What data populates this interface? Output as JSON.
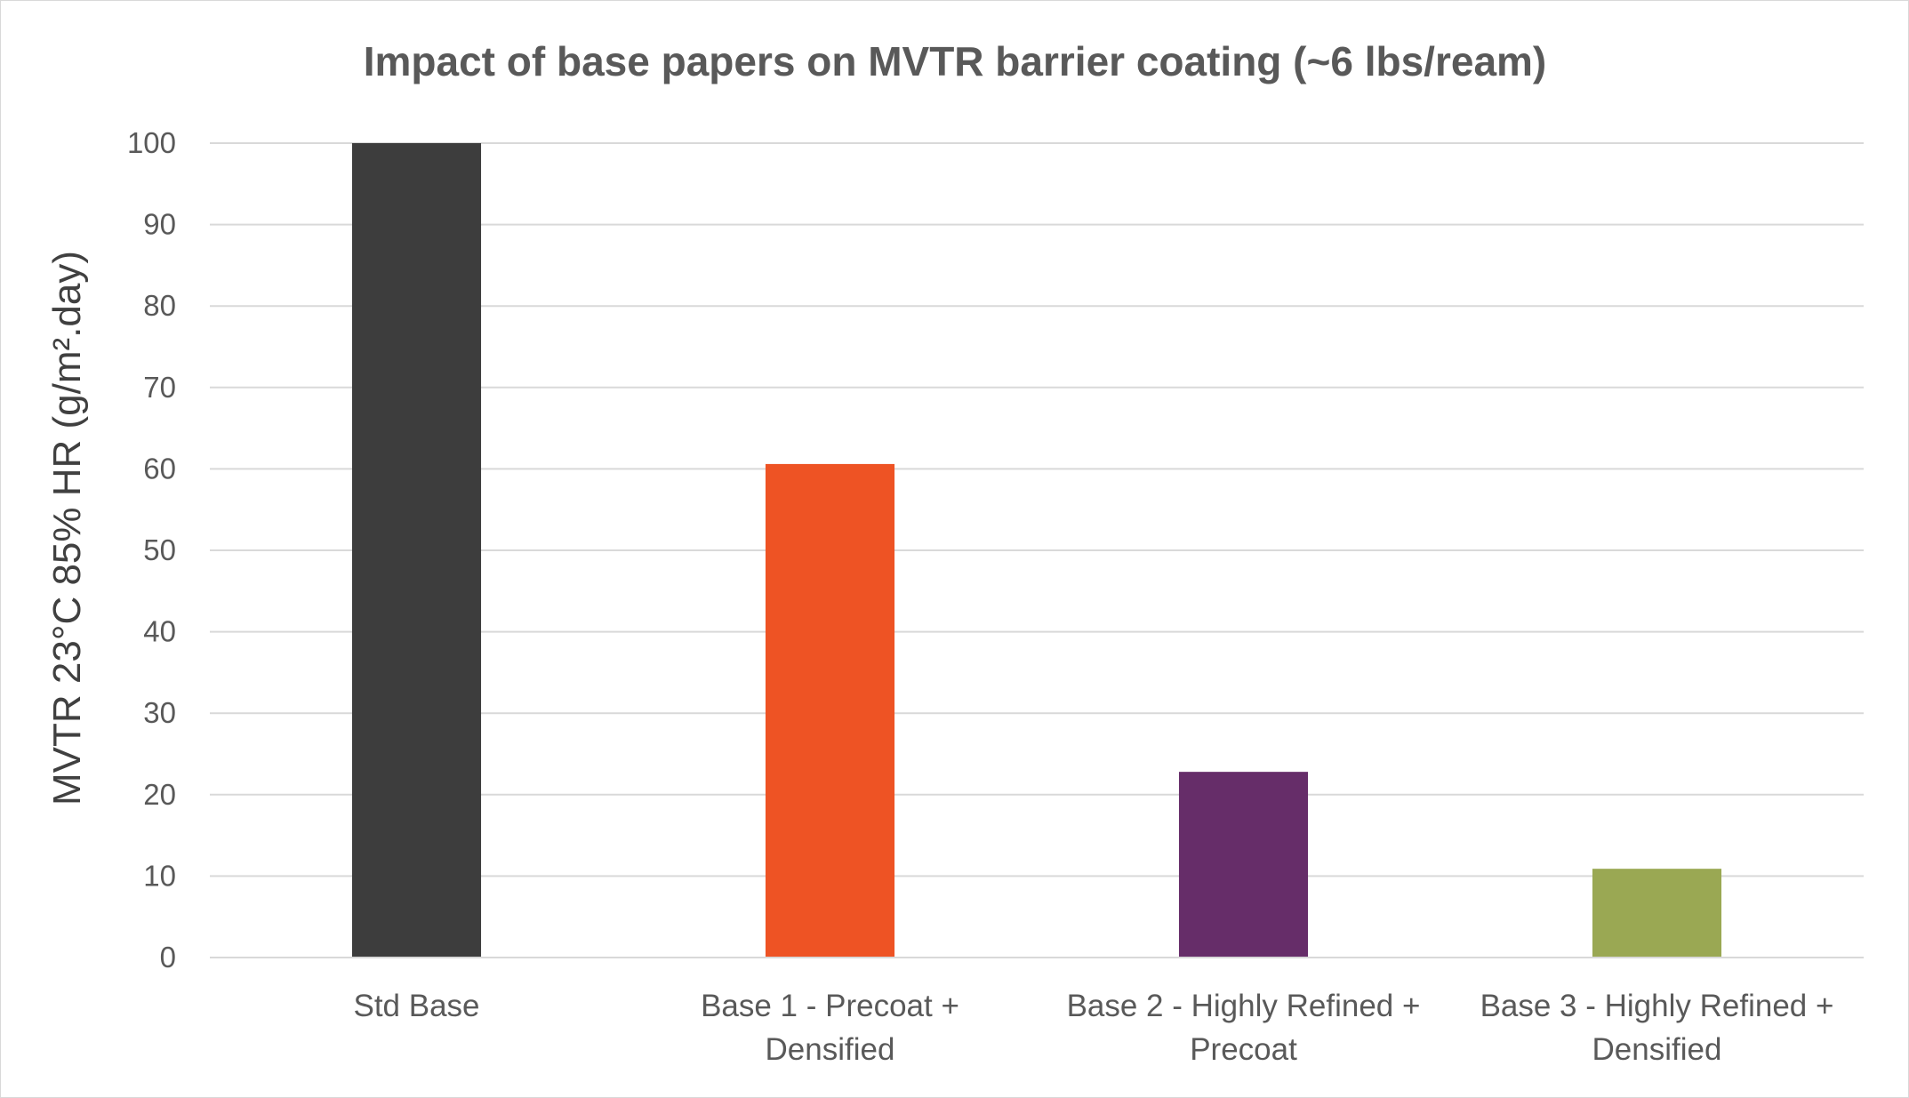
{
  "chart_data": {
    "type": "bar",
    "title": "Impact of base papers on MVTR barrier coating (~6 lbs/ream)",
    "ylabel": "MVTR 23°C 85% HR (g/m².day)",
    "xlabel": "",
    "categories": [
      [
        "Std Base"
      ],
      [
        "Base 1 - Precoat +",
        "Densified"
      ],
      [
        "Base 2 - Highly Refined +",
        "Precoat"
      ],
      [
        "Base 3 - Highly Refined +",
        "Densified"
      ]
    ],
    "values": [
      100,
      60.6,
      22.8,
      10.9
    ],
    "bar_colors": [
      "#3d3d3d",
      "#ee5324",
      "#662d69",
      "#9aa853"
    ],
    "ylim": [
      0,
      100
    ],
    "yticks": [
      0,
      10,
      20,
      30,
      40,
      50,
      60,
      70,
      80,
      90,
      100
    ],
    "grid": true,
    "legend": "none"
  }
}
